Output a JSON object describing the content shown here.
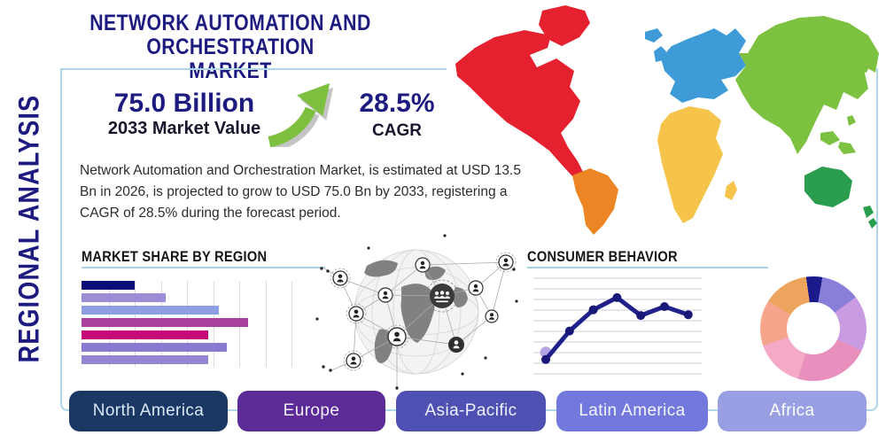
{
  "page": {
    "title_line1": "NETWORK AUTOMATION AND ORCHESTRATION",
    "title_line2": "MARKET",
    "sidebar_label": "REGIONAL ANALYSIS"
  },
  "stats": {
    "market_value": "75.0 Billion",
    "market_value_label": "2033 Market Value",
    "cagr_value": "28.5%",
    "cagr_label": "CAGR"
  },
  "description": "Network Automation and Orchestration Market, is estimated at USD 13.5 Bn in 2026, is projected to grow to USD 75.0 Bn by 2033, registering a CAGR of 28.5% during the forecast period.",
  "colors": {
    "accent_navy": "#1d1b80",
    "frame_border": "#aed7ea",
    "heading_underline": "#a8d4ea",
    "arrow_green": "#7dbf3f"
  },
  "chart_data": [
    {
      "type": "bar",
      "title": "MARKET SHARE BY REGION",
      "orientation": "horizontal",
      "values": [
        25,
        40,
        65,
        79,
        60,
        69,
        60
      ],
      "xlim": [
        0,
        100
      ],
      "colors": [
        "#0c0c77",
        "#9c8cd6",
        "#8d9fe2",
        "#aa3f9e",
        "#c50a78",
        "#8b7ad2",
        "#9584d2"
      ],
      "grid": true,
      "axis_labels_shown": false
    },
    {
      "type": "line",
      "title": "CONSUMER BEHAVIOR",
      "x": [
        1,
        2,
        3,
        4,
        5,
        6,
        7
      ],
      "values": [
        10,
        45,
        71,
        86,
        64,
        75,
        65
      ],
      "ylim": [
        0,
        100
      ],
      "line_color": "#20208a",
      "marker_color": "#181878",
      "start_marker_color": "#b5a4e3",
      "grid": true,
      "axis_labels_shown": false
    },
    {
      "type": "pie",
      "donut": true,
      "values": [
        5,
        12,
        17,
        23,
        15,
        14,
        14
      ],
      "colors": [
        "#1a1a8c",
        "#8a7fd8",
        "#c99ce2",
        "#e88fbe",
        "#f4a9c6",
        "#f5a58c",
        "#eda45c"
      ],
      "start_angle_deg": -8,
      "labels_shown": false
    }
  ],
  "map": {
    "regions": [
      {
        "id": "north-america",
        "name": "North America",
        "color": "#e6212f"
      },
      {
        "id": "south-america",
        "name": "South America",
        "color": "#ec8523"
      },
      {
        "id": "europe",
        "name": "Europe",
        "color": "#3f9bd8"
      },
      {
        "id": "africa",
        "name": "Africa",
        "color": "#f6c44a"
      },
      {
        "id": "asia",
        "name": "Asia",
        "color": "#7cc140"
      },
      {
        "id": "australia",
        "name": "Australia",
        "color": "#2a9d4e"
      }
    ]
  },
  "buttons": [
    {
      "label": "North America",
      "color": "#1b3764",
      "text_color": "#d9e8f5"
    },
    {
      "label": "Europe",
      "color": "#5c2b97",
      "text_color": "#f3eef9"
    },
    {
      "label": "Asia-Pacific",
      "color": "#4f51b2",
      "text_color": "#eef0fa"
    },
    {
      "label": "Latin America",
      "color": "#7378dc",
      "text_color": "#f5f6fd"
    },
    {
      "label": "Africa",
      "color": "#9a9fe3",
      "text_color": "#ffffff"
    }
  ]
}
